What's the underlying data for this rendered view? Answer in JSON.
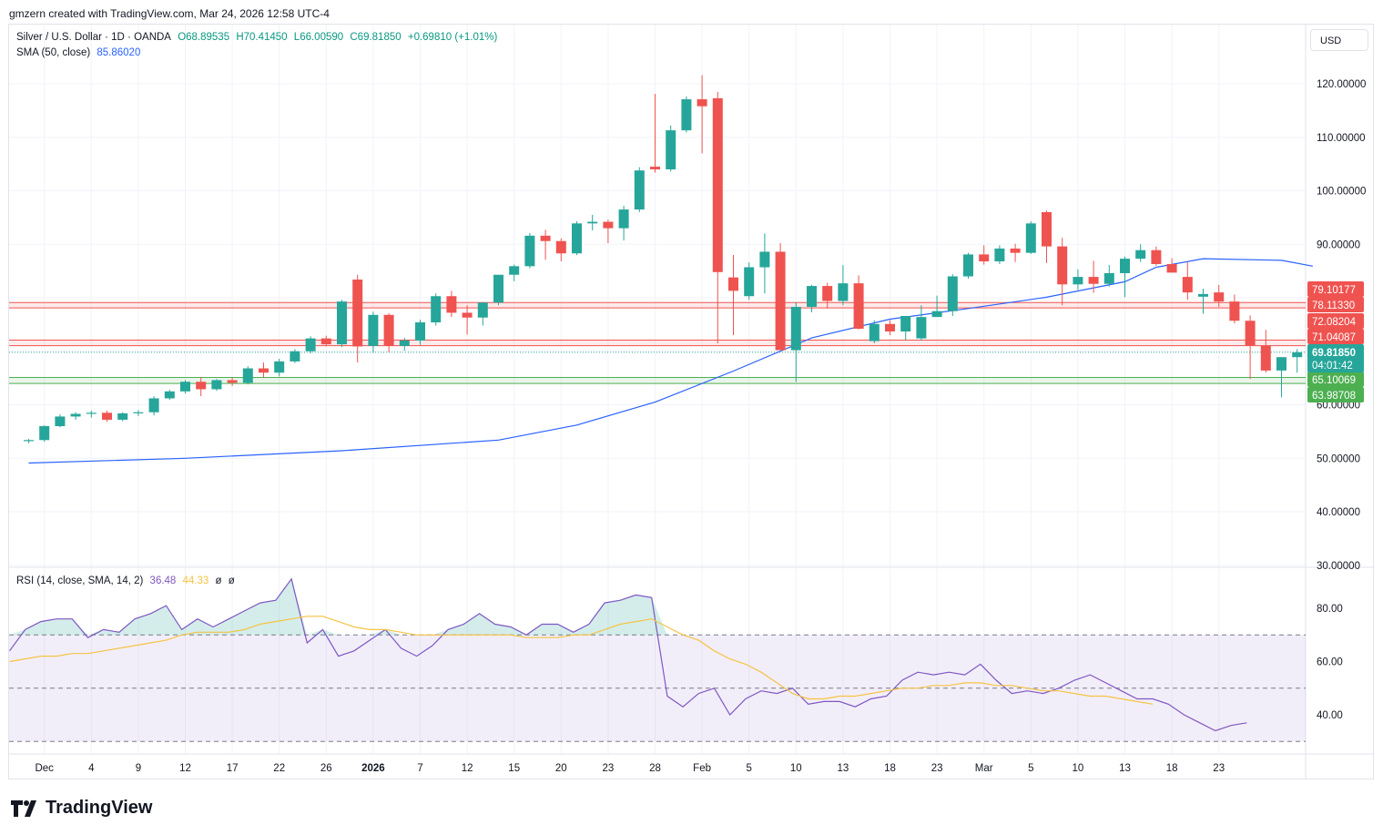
{
  "header": {
    "credit": "gmzern created with TradingView.com, Mar 24, 2026 12:58 UTC-4"
  },
  "legend": {
    "symbol": "Silver / U.S. Dollar · 1D · OANDA",
    "o": "O68.89535",
    "h": "H70.41450",
    "l": "L66.00590",
    "c": "C69.81850",
    "change": "+0.69810 (+1.01%)",
    "sma_label": "SMA (50, close)",
    "sma_value": "85.86020",
    "rsi_label": "RSI (14, close, SMA, 14, 2)",
    "rsi_value": "36.48",
    "rsi_sma_value": "44.33",
    "rsi_extra1": "ø",
    "rsi_extra2": "ø"
  },
  "currency": "USD",
  "footer": {
    "brand": "TradingView"
  },
  "colors": {
    "up": "#26a69a",
    "down": "#ef5350",
    "sma": "#2962ff",
    "rsi": "#7e57c2",
    "rsi_sma": "#f6c343",
    "support": "#4caf50",
    "resistance": "#ef5350"
  },
  "chart_data": [
    {
      "type": "candlestick",
      "title": "Silver / U.S. Dollar · 1D · OANDA",
      "ylim": [
        30,
        125
      ],
      "y_ticks": [
        "120.00000",
        "110.00000",
        "100.00000",
        "90.00000",
        "80.00000",
        "70.00000",
        "60.00000",
        "50.00000",
        "40.00000",
        "30.00000"
      ],
      "x_tick_labels": [
        "Dec",
        "4",
        "9",
        "12",
        "17",
        "22",
        "26",
        "2026",
        "7",
        "12",
        "15",
        "20",
        "23",
        "28",
        "Feb",
        "5",
        "10",
        "13",
        "18",
        "23",
        "Mar",
        "5",
        "10",
        "13",
        "18",
        "23"
      ],
      "x_tick_index": [
        1,
        4,
        7,
        10,
        13,
        16,
        19,
        22,
        25,
        28,
        31,
        34,
        37,
        40,
        43,
        46,
        49,
        52,
        55,
        58,
        61,
        64,
        67,
        70,
        73,
        76
      ],
      "candles": [
        [
          53.2,
          53.6,
          52.8,
          53.4
        ],
        [
          53.4,
          56.2,
          53.1,
          56.0
        ],
        [
          56.0,
          58.2,
          55.8,
          57.8
        ],
        [
          57.8,
          58.6,
          57.2,
          58.3
        ],
        [
          58.3,
          58.9,
          57.6,
          58.5
        ],
        [
          58.5,
          58.9,
          56.8,
          57.2
        ],
        [
          57.2,
          58.6,
          56.9,
          58.4
        ],
        [
          58.4,
          59.0,
          57.9,
          58.6
        ],
        [
          58.6,
          61.6,
          58.0,
          61.2
        ],
        [
          61.2,
          62.8,
          60.9,
          62.5
        ],
        [
          62.5,
          64.6,
          62.1,
          64.3
        ],
        [
          64.3,
          65.2,
          61.6,
          62.9
        ],
        [
          62.9,
          64.8,
          62.6,
          64.6
        ],
        [
          64.6,
          65.1,
          63.5,
          64.1
        ],
        [
          64.1,
          67.2,
          63.8,
          66.8
        ],
        [
          66.8,
          67.9,
          65.0,
          66.0
        ],
        [
          66.0,
          68.6,
          65.3,
          68.1
        ],
        [
          68.1,
          70.4,
          67.8,
          70.0
        ],
        [
          70.0,
          72.8,
          69.6,
          72.4
        ],
        [
          72.4,
          72.9,
          70.9,
          71.3
        ],
        [
          71.3,
          79.6,
          70.8,
          79.3
        ],
        [
          83.4,
          84.3,
          67.9,
          70.9
        ],
        [
          71.0,
          77.4,
          69.7,
          76.8
        ],
        [
          76.8,
          77.1,
          69.8,
          71.0
        ],
        [
          71.0,
          72.5,
          70.1,
          72.0
        ],
        [
          72.0,
          75.9,
          71.2,
          75.4
        ],
        [
          75.4,
          80.8,
          74.8,
          80.3
        ],
        [
          80.3,
          81.3,
          76.4,
          77.2
        ],
        [
          77.2,
          78.6,
          73.1,
          76.3
        ],
        [
          76.3,
          79.2,
          74.8,
          79.1
        ],
        [
          79.1,
          83.8,
          78.6,
          84.3
        ],
        [
          84.3,
          86.2,
          83.1,
          85.9
        ],
        [
          85.9,
          92.1,
          85.5,
          91.6
        ],
        [
          91.6,
          92.7,
          87.1,
          90.6
        ],
        [
          90.6,
          91.1,
          86.8,
          88.3
        ],
        [
          88.3,
          94.3,
          88.0,
          93.9
        ],
        [
          93.9,
          95.5,
          92.6,
          94.2
        ],
        [
          94.2,
          94.6,
          90.2,
          93.0
        ],
        [
          93.0,
          97.2,
          90.7,
          96.5
        ],
        [
          96.5,
          104.4,
          96.0,
          103.8
        ],
        [
          104.5,
          118.1,
          103.4,
          104.0
        ],
        [
          104.0,
          112.2,
          103.6,
          111.3
        ],
        [
          111.3,
          117.6,
          110.9,
          117.1
        ],
        [
          117.1,
          121.6,
          107.0,
          115.8
        ],
        [
          117.3,
          118.5,
          71.5,
          84.8
        ],
        [
          83.8,
          88.0,
          73.0,
          81.3
        ],
        [
          80.3,
          86.6,
          79.6,
          85.7
        ],
        [
          85.7,
          92.0,
          80.8,
          88.6
        ],
        [
          88.6,
          90.2,
          70.5,
          70.2
        ],
        [
          70.2,
          79.1,
          64.3,
          78.3
        ],
        [
          78.3,
          82.4,
          77.3,
          82.2
        ],
        [
          82.2,
          82.8,
          78.0,
          79.4
        ],
        [
          79.4,
          86.1,
          78.6,
          82.7
        ],
        [
          82.7,
          84.2,
          74.1,
          74.2
        ],
        [
          71.9,
          75.8,
          71.5,
          75.1
        ],
        [
          75.1,
          75.8,
          73.0,
          73.7
        ],
        [
          73.7,
          76.6,
          72.1,
          76.6
        ],
        [
          72.4,
          78.6,
          72.0,
          76.4
        ],
        [
          76.4,
          80.4,
          77.1,
          77.5
        ],
        [
          77.5,
          84.4,
          76.6,
          84.0
        ],
        [
          84.0,
          88.4,
          83.6,
          88.1
        ],
        [
          88.1,
          89.8,
          86.2,
          86.8
        ],
        [
          86.8,
          89.8,
          86.3,
          89.2
        ],
        [
          89.2,
          90.1,
          86.7,
          88.4
        ],
        [
          88.4,
          94.3,
          88.2,
          93.9
        ],
        [
          96.0,
          96.3,
          86.5,
          89.6
        ],
        [
          89.6,
          91.2,
          78.6,
          82.5
        ],
        [
          82.5,
          85.3,
          81.5,
          83.9
        ],
        [
          83.9,
          86.9,
          80.9,
          82.6
        ],
        [
          82.6,
          86.1,
          82.1,
          84.6
        ],
        [
          84.6,
          87.7,
          80.1,
          87.3
        ],
        [
          87.3,
          90.0,
          86.7,
          88.9
        ],
        [
          88.9,
          89.6,
          86.0,
          86.3
        ],
        [
          86.3,
          87.4,
          84.7,
          84.7
        ],
        [
          83.9,
          86.8,
          79.6,
          81.0
        ],
        [
          80.2,
          81.7,
          77.0,
          80.7
        ],
        [
          81.0,
          82.4,
          78.3,
          79.3
        ],
        [
          79.3,
          80.6,
          75.2,
          75.7
        ],
        [
          75.7,
          76.7,
          64.8,
          71.1
        ],
        [
          71.1,
          74.0,
          66.0,
          66.4
        ],
        [
          66.4,
          68.9,
          61.4,
          68.9
        ],
        [
          68.9,
          70.4,
          66.0,
          69.8
        ]
      ],
      "sma50": [
        49.1,
        50.0,
        51.4,
        53.4,
        56.2,
        60.5,
        66.3,
        72.5,
        76.0,
        78.0,
        80.1,
        83.0,
        85.7,
        87.3,
        87.0,
        85.9
      ],
      "sma50_x_index": [
        0,
        10,
        20,
        30,
        35,
        40,
        45,
        50,
        55,
        60,
        65,
        70,
        72,
        75,
        80,
        82
      ],
      "price_levels": [
        {
          "value": "79.10177",
          "color": "#ef5350"
        },
        {
          "value": "78.11330",
          "color": "#ef5350"
        },
        {
          "value": "72.08204",
          "color": "#ef5350"
        },
        {
          "value": "71.04087",
          "color": "#ef5350"
        },
        {
          "value": "65.10069",
          "color": "#4caf50"
        },
        {
          "value": "63.98708",
          "color": "#4caf50"
        }
      ],
      "price_levels_num": [
        79.10177,
        78.1133,
        72.08204,
        71.04087,
        65.10069,
        63.98708
      ],
      "last_price": "69.81850",
      "countdown": "04:01:42"
    },
    {
      "type": "line",
      "title": "RSI (14, close, SMA, 14, 2)",
      "ylim": [
        25,
        95
      ],
      "y_ticks": [
        "80.00",
        "60.00",
        "40.00"
      ],
      "bands": [
        70,
        50,
        30
      ],
      "rsi": [
        64,
        72,
        75,
        76,
        76,
        69,
        72,
        71,
        76,
        78,
        81,
        72,
        76,
        73,
        76,
        79,
        82,
        83,
        91,
        67,
        72,
        62,
        64,
        68,
        72,
        65,
        62,
        66,
        72,
        74,
        78,
        74,
        73,
        70,
        74,
        74,
        71,
        74,
        82,
        83,
        85,
        84,
        47,
        43,
        48,
        50,
        40,
        46,
        49,
        48,
        50,
        44,
        45,
        45,
        43,
        46,
        47,
        53,
        56,
        55,
        56,
        55,
        59,
        53,
        48,
        49,
        48,
        50,
        53,
        55,
        52,
        49,
        46,
        46,
        44,
        40,
        37,
        34,
        36,
        37
      ],
      "rsi_sma": [
        60,
        61,
        62,
        62,
        63,
        63,
        64,
        65,
        66,
        67,
        68,
        70,
        71,
        71,
        71,
        72,
        74,
        75,
        76,
        77,
        77,
        75,
        73,
        72,
        72,
        71,
        70,
        70,
        70,
        70,
        70,
        70,
        70,
        69,
        69,
        69,
        70,
        70,
        72,
        74,
        75,
        76,
        73,
        70,
        68,
        64,
        61,
        59,
        56,
        52,
        48,
        46,
        46,
        47,
        47,
        48,
        49,
        50,
        50,
        51,
        51,
        52,
        52,
        51,
        51,
        50,
        49,
        49,
        48,
        47,
        47,
        46,
        45,
        44
      ]
    }
  ]
}
